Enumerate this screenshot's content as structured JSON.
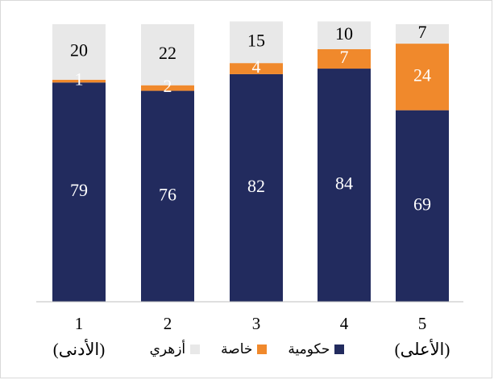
{
  "chart_data": {
    "type": "bar",
    "stacked": true,
    "categories": [
      "1",
      "2",
      "3",
      "4",
      "5"
    ],
    "category_sublabels": [
      "(الأدنى)",
      "",
      "",
      "",
      "(الأعلى)"
    ],
    "series": [
      {
        "name": "حكومية",
        "color": "#222b5e",
        "values": [
          79,
          76,
          82,
          84,
          69
        ]
      },
      {
        "name": "خاصة",
        "color": "#f0892c",
        "values": [
          1,
          2,
          4,
          7,
          24
        ]
      },
      {
        "name": "أزهري",
        "color": "#e8e8e8",
        "values": [
          20,
          22,
          15,
          10,
          7
        ]
      }
    ],
    "ylim": [
      0,
      100
    ],
    "grid": false,
    "legend_position": "bottom"
  }
}
